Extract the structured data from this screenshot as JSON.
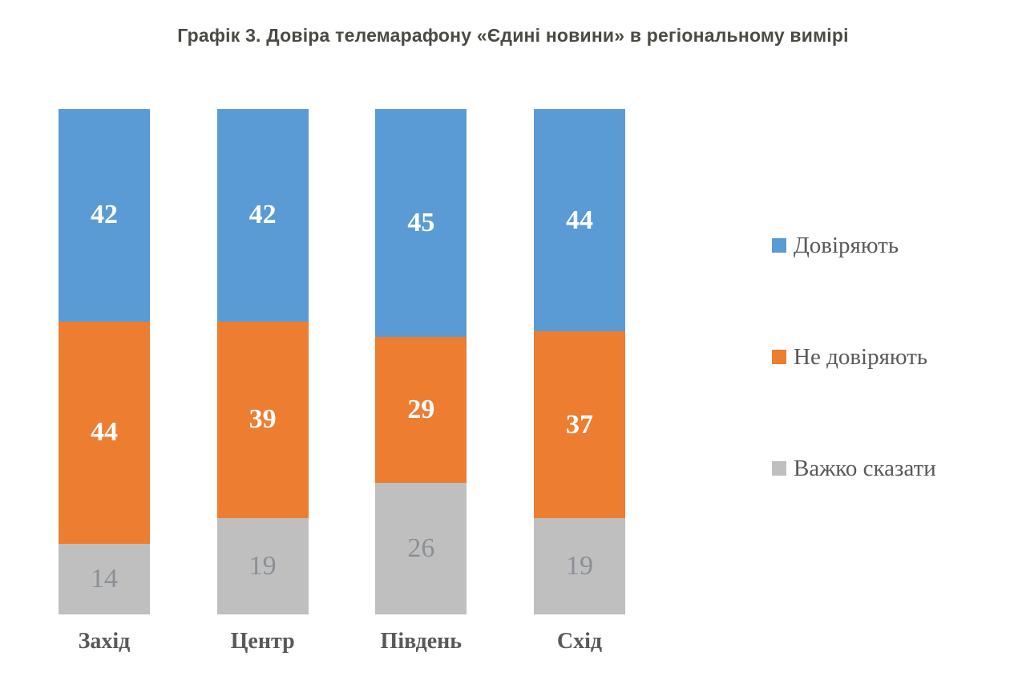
{
  "page": {
    "background": "#FFFFFF",
    "title_color": "#4A4B44",
    "text_color": "#595959"
  },
  "chart_data": {
    "type": "bar",
    "subtype": "stacked-column-100",
    "title": "Графік 3. Довіра телемарафону «Єдині новини» в регіональному вимірі",
    "categories": [
      "Захід",
      "Центр",
      "Південь",
      "Схід"
    ],
    "series": [
      {
        "name": "Довіряють",
        "color": "#5B9BD5",
        "label_color": "#FFFFFF",
        "label_bold": true,
        "values": [
          42,
          42,
          45,
          44
        ]
      },
      {
        "name": "Не довіряють",
        "color": "#ED7D31",
        "label_color": "#FFFFFF",
        "label_bold": true,
        "values": [
          44,
          39,
          29,
          37
        ]
      },
      {
        "name": "Важко сказати",
        "color": "#BFBFBF",
        "label_color": "#8B9097",
        "label_bold": false,
        "values": [
          14,
          19,
          26,
          19
        ]
      }
    ],
    "ylim": [
      0,
      100
    ],
    "units": "percent",
    "grid": false,
    "axes_visible": false,
    "legend_position": "right",
    "legend": [
      "Довіряють",
      "Не довіряють",
      "Важко сказати"
    ]
  }
}
